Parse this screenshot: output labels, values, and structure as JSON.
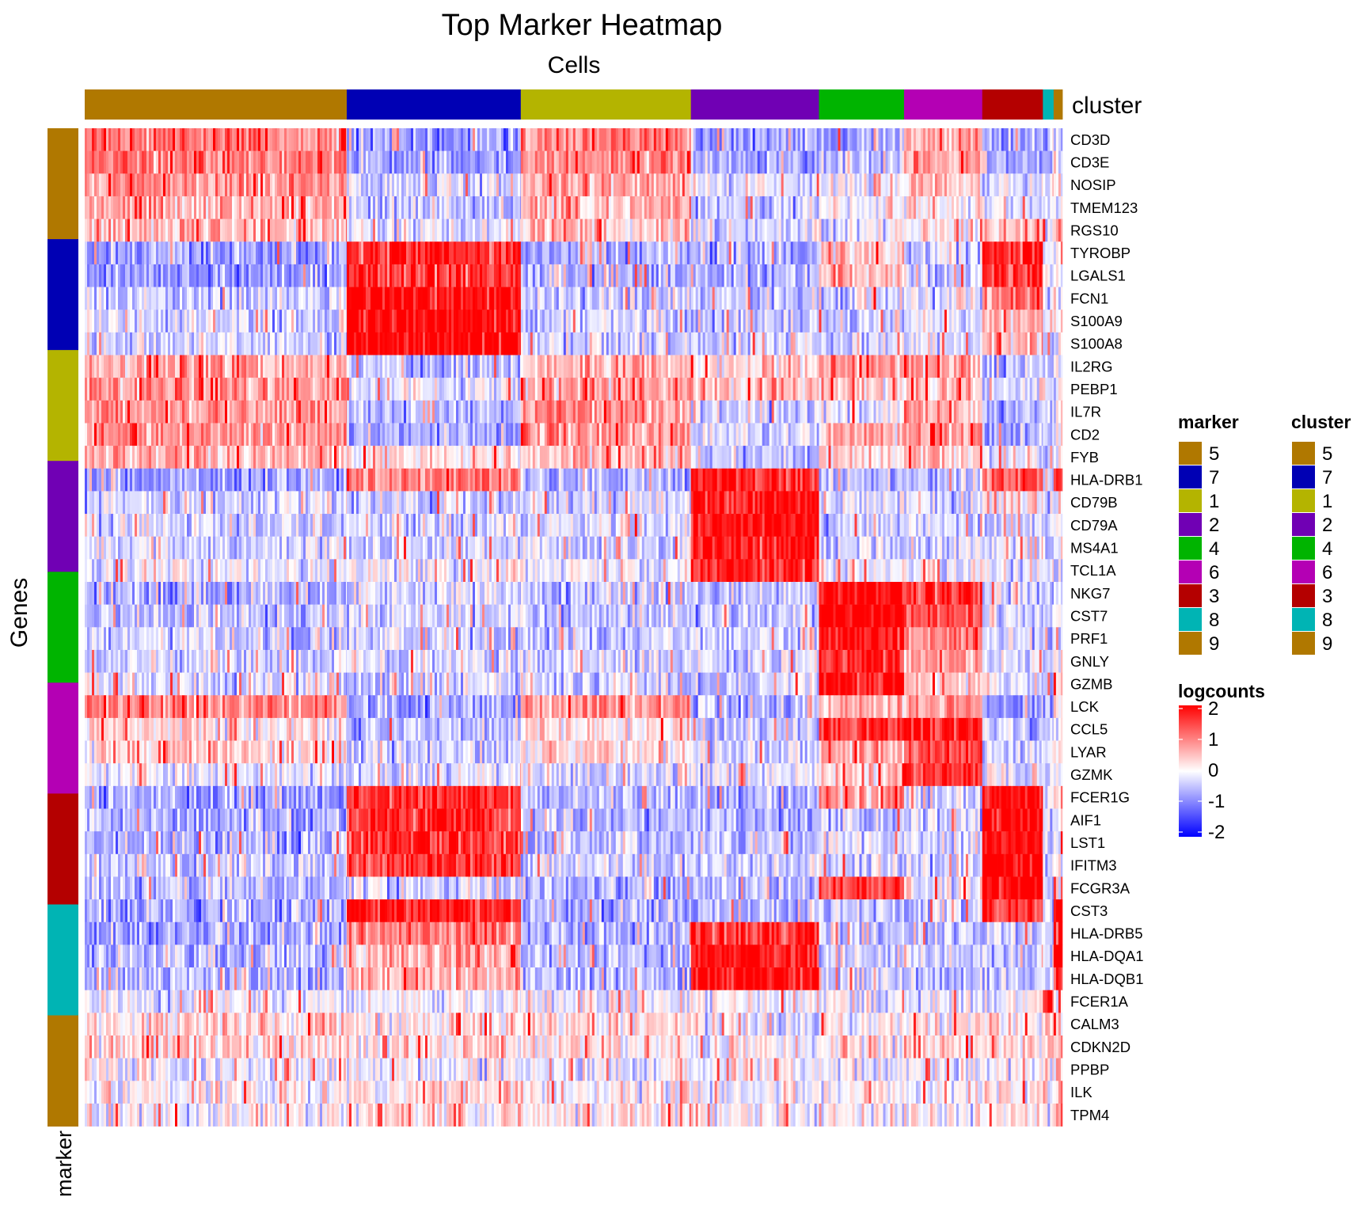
{
  "title": "Top Marker Heatmap",
  "x_title": "Cells",
  "y_title": "Genes",
  "marker_axis_label": "marker",
  "cluster_annotation_label": "cluster",
  "legends": {
    "marker_title": "marker",
    "cluster_title": "cluster",
    "logcounts_title": "logcounts",
    "marker_entries": [
      {
        "label": "5",
        "color": "#B07800"
      },
      {
        "label": "7",
        "color": "#0000B4"
      },
      {
        "label": "1",
        "color": "#B4B400"
      },
      {
        "label": "2",
        "color": "#7000B4"
      },
      {
        "label": "4",
        "color": "#00B400"
      },
      {
        "label": "6",
        "color": "#B400B4"
      },
      {
        "label": "3",
        "color": "#B40000"
      },
      {
        "label": "8",
        "color": "#00B4B4"
      },
      {
        "label": "9",
        "color": "#B07800"
      }
    ],
    "cluster_entries": [
      {
        "label": "5",
        "color": "#B07800"
      },
      {
        "label": "7",
        "color": "#0000B4"
      },
      {
        "label": "1",
        "color": "#B4B400"
      },
      {
        "label": "2",
        "color": "#7000B4"
      },
      {
        "label": "4",
        "color": "#00B400"
      },
      {
        "label": "6",
        "color": "#B400B4"
      },
      {
        "label": "3",
        "color": "#B40000"
      },
      {
        "label": "8",
        "color": "#00B4B4"
      },
      {
        "label": "9",
        "color": "#B07800"
      }
    ],
    "logcounts_ticks": [
      "2",
      "1",
      "0",
      "-1",
      "-2"
    ]
  },
  "chart_data": {
    "type": "heatmap",
    "title": "Top Marker Heatmap",
    "xlabel": "Cells",
    "ylabel": "Genes",
    "value_name": "logcounts",
    "color_scale": {
      "min": -2,
      "mid": 0,
      "max": 2,
      "low": "#0000FF",
      "mid_color": "#FFFFFF",
      "high": "#FF0000"
    },
    "cluster_order": [
      "5",
      "7",
      "1",
      "2",
      "4",
      "6",
      "3",
      "8",
      "9"
    ],
    "cluster_colors": {
      "5": "#B07800",
      "7": "#0000B4",
      "1": "#B4B400",
      "2": "#7000B4",
      "4": "#00B400",
      "6": "#B400B4",
      "3": "#B40000",
      "8": "#00B4B4",
      "9": "#B07800"
    },
    "cluster_fractions": [
      0.268,
      0.178,
      0.174,
      0.131,
      0.087,
      0.08,
      0.062,
      0.011,
      0.009
    ],
    "genes": [
      "CD3D",
      "CD3E",
      "NOSIP",
      "TMEM123",
      "RGS10",
      "TYROBP",
      "LGALS1",
      "FCN1",
      "S100A9",
      "S100A8",
      "IL2RG",
      "PEBP1",
      "IL7R",
      "CD2",
      "FYB",
      "HLA-DRB1",
      "CD79B",
      "CD79A",
      "MS4A1",
      "TCL1A",
      "NKG7",
      "CST7",
      "PRF1",
      "GNLY",
      "GZMB",
      "LCK",
      "CCL5",
      "LYAR",
      "GZMK",
      "FCER1G",
      "AIF1",
      "LST1",
      "IFITM3",
      "FCGR3A",
      "CST3",
      "HLA-DRB5",
      "HLA-DQA1",
      "HLA-DQB1",
      "FCER1A",
      "CALM3",
      "CDKN2D",
      "PPBP",
      "ILK",
      "TPM4"
    ],
    "marker_groups": [
      "5",
      "7",
      "1",
      "2",
      "4",
      "6",
      "3",
      "8",
      "9"
    ],
    "mean_logcounts": {
      "columns": [
        "5",
        "7",
        "1",
        "2",
        "4",
        "6",
        "3",
        "8",
        "9"
      ],
      "rows": [
        [
          1.0,
          -0.8,
          1.0,
          -0.8,
          -0.6,
          0.6,
          -0.8,
          -0.7,
          0.0
        ],
        [
          1.0,
          -0.8,
          1.0,
          -0.7,
          -0.4,
          0.7,
          -0.8,
          -0.7,
          0.0
        ],
        [
          0.8,
          -0.3,
          0.7,
          -0.2,
          -0.1,
          0.4,
          -0.2,
          -0.3,
          0.0
        ],
        [
          0.6,
          -0.5,
          0.6,
          -0.4,
          0.1,
          0.2,
          -0.3,
          -0.3,
          0.0
        ],
        [
          0.5,
          -0.2,
          0.5,
          -0.3,
          -0.1,
          0.2,
          0.7,
          -0.2,
          0.8
        ],
        [
          -0.7,
          1.7,
          -0.6,
          -0.6,
          0.5,
          -0.3,
          1.7,
          -0.2,
          0.0
        ],
        [
          -0.8,
          1.6,
          -0.6,
          -0.6,
          0.4,
          -0.4,
          1.5,
          -0.2,
          0.0
        ],
        [
          -0.4,
          1.9,
          -0.4,
          -0.4,
          -0.3,
          -0.3,
          1.2,
          -0.3,
          0.0
        ],
        [
          -0.3,
          2.0,
          -0.4,
          -0.4,
          -0.4,
          -0.3,
          0.6,
          -0.3,
          0.0
        ],
        [
          -0.3,
          2.0,
          -0.4,
          -0.4,
          -0.4,
          -0.3,
          0.4,
          -0.3,
          0.0
        ],
        [
          0.6,
          -0.5,
          0.5,
          0.4,
          0.8,
          0.6,
          -0.6,
          -0.3,
          0.0
        ],
        [
          0.8,
          -0.2,
          0.7,
          0.5,
          0.3,
          0.4,
          -0.3,
          -0.3,
          0.0
        ],
        [
          0.8,
          -0.5,
          0.8,
          -0.4,
          -0.2,
          0.6,
          -0.6,
          -0.4,
          0.0
        ],
        [
          0.8,
          -0.6,
          0.8,
          -0.4,
          0.6,
          0.8,
          -0.6,
          -0.4,
          0.0
        ],
        [
          0.7,
          0.2,
          0.6,
          -0.5,
          0.2,
          0.4,
          0.0,
          -0.3,
          0.0
        ],
        [
          -0.8,
          1.0,
          -0.6,
          1.7,
          -0.5,
          -0.3,
          1.3,
          -0.3,
          1.7
        ],
        [
          -0.3,
          -0.3,
          -0.3,
          1.9,
          -0.3,
          -0.3,
          0.4,
          -0.3,
          0.0
        ],
        [
          -0.3,
          -0.3,
          -0.3,
          1.9,
          -0.3,
          -0.3,
          -0.3,
          -0.3,
          0.0
        ],
        [
          -0.3,
          -0.3,
          -0.3,
          1.8,
          -0.3,
          -0.3,
          -0.3,
          -0.3,
          0.0
        ],
        [
          -0.1,
          -0.1,
          -0.1,
          1.7,
          -0.1,
          -0.1,
          -0.1,
          -0.1,
          0.0
        ],
        [
          -0.6,
          -0.4,
          -0.5,
          -0.5,
          2.0,
          1.5,
          -0.3,
          -0.3,
          0.0
        ],
        [
          -0.5,
          -0.4,
          -0.5,
          -0.5,
          2.0,
          1.3,
          -0.3,
          -0.3,
          0.0
        ],
        [
          -0.4,
          -0.3,
          -0.4,
          -0.4,
          1.8,
          0.9,
          -0.3,
          -0.3,
          0.0
        ],
        [
          -0.3,
          -0.3,
          -0.3,
          -0.3,
          1.7,
          0.7,
          -0.3,
          -0.3,
          0.0
        ],
        [
          -0.3,
          -0.3,
          -0.3,
          -0.3,
          1.8,
          0.4,
          -0.3,
          -0.3,
          0.0
        ],
        [
          0.9,
          -0.8,
          0.8,
          -0.7,
          0.4,
          0.8,
          -0.7,
          -0.6,
          0.0
        ],
        [
          0.2,
          -0.5,
          0.2,
          -0.5,
          1.6,
          1.8,
          -0.5,
          -0.4,
          0.0
        ],
        [
          0.3,
          -0.3,
          0.3,
          -0.3,
          0.7,
          1.4,
          -0.3,
          -0.3,
          0.0
        ],
        [
          -0.2,
          -0.2,
          -0.2,
          -0.2,
          0.3,
          1.7,
          -0.2,
          -0.2,
          0.0
        ],
        [
          -0.7,
          1.6,
          -0.6,
          -0.6,
          0.9,
          -0.3,
          2.0,
          -0.3,
          0.0
        ],
        [
          -0.6,
          1.7,
          -0.6,
          -0.6,
          -0.4,
          -0.4,
          2.0,
          -0.3,
          0.0
        ],
        [
          -0.6,
          1.6,
          -0.5,
          -0.5,
          -0.3,
          -0.3,
          2.0,
          -0.3,
          0.0
        ],
        [
          -0.4,
          1.5,
          -0.4,
          -0.4,
          -0.3,
          -0.3,
          2.0,
          -0.3,
          0.0
        ],
        [
          -0.5,
          -0.3,
          -0.5,
          -0.5,
          1.5,
          -0.2,
          2.0,
          -0.3,
          0.0
        ],
        [
          -0.6,
          1.8,
          -0.6,
          -0.6,
          -0.4,
          -0.4,
          1.3,
          -0.4,
          2.0
        ],
        [
          -0.7,
          1.0,
          -0.6,
          1.6,
          -0.5,
          -0.4,
          -0.5,
          -0.4,
          2.0
        ],
        [
          -0.5,
          0.6,
          -0.5,
          1.9,
          -0.4,
          -0.4,
          -0.4,
          -0.4,
          2.0
        ],
        [
          -0.5,
          0.6,
          -0.5,
          1.9,
          -0.4,
          -0.4,
          -0.4,
          -0.4,
          2.0
        ],
        [
          -0.1,
          -0.1,
          -0.1,
          -0.1,
          -0.1,
          -0.1,
          -0.1,
          2.0,
          0.0
        ],
        [
          0.3,
          0.2,
          0.2,
          -0.2,
          0.0,
          0.1,
          0.2,
          0.3,
          0.5
        ],
        [
          0.3,
          0.3,
          0.2,
          0.0,
          0.2,
          0.2,
          0.3,
          0.2,
          0.5
        ],
        [
          -0.1,
          -0.1,
          -0.1,
          -0.1,
          -0.1,
          -0.1,
          -0.1,
          -0.1,
          0.3
        ],
        [
          0.1,
          0.3,
          0.1,
          0.0,
          0.1,
          0.1,
          0.1,
          0.2,
          0.4
        ],
        [
          0.0,
          0.2,
          0.1,
          0.0,
          0.0,
          0.0,
          0.1,
          0.1,
          0.5
        ]
      ]
    },
    "legend_placement": "right"
  }
}
